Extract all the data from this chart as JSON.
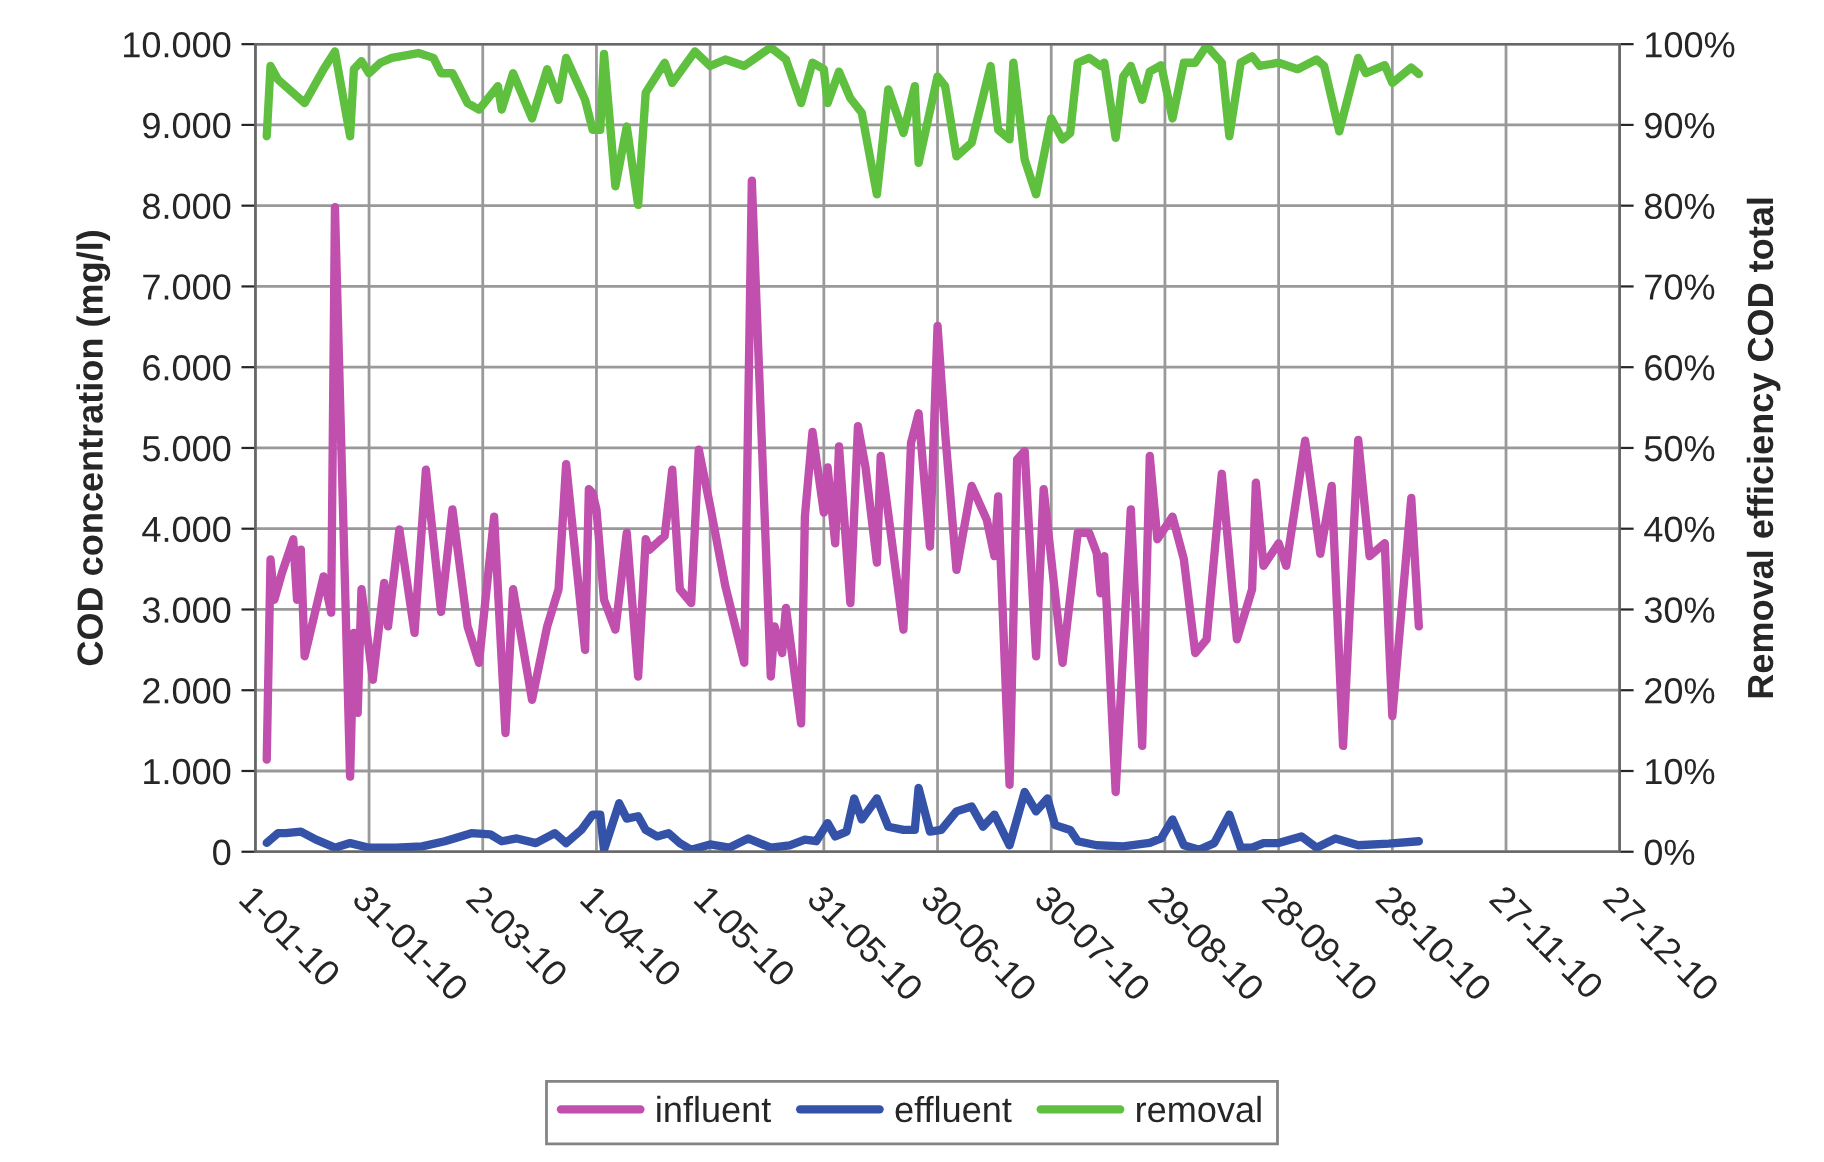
{
  "chart_data": {
    "type": "line",
    "ylabel": "COD concentration (mg/l)",
    "y2label": "Removal efficiency COD total",
    "xlim": [
      "2010-01-01",
      "2010-12-27"
    ],
    "xticks": [
      {
        "value": "2010-01-01",
        "label": "1-01-10"
      },
      {
        "value": "2010-01-31",
        "label": "31-01-10"
      },
      {
        "value": "2010-03-02",
        "label": "2-03-10"
      },
      {
        "value": "2010-04-01",
        "label": "1-04-10"
      },
      {
        "value": "2010-05-01",
        "label": "1-05-10"
      },
      {
        "value": "2010-05-31",
        "label": "31-05-10"
      },
      {
        "value": "2010-06-30",
        "label": "30-06-10"
      },
      {
        "value": "2010-07-30",
        "label": "30-07-10"
      },
      {
        "value": "2010-08-29",
        "label": "29-08-10"
      },
      {
        "value": "2010-09-28",
        "label": "28-09-10"
      },
      {
        "value": "2010-10-28",
        "label": "28-10-10"
      },
      {
        "value": "2010-11-27",
        "label": "27-11-10"
      },
      {
        "value": "2010-12-27",
        "label": "27-12-10"
      }
    ],
    "ylim": [
      0,
      10000
    ],
    "yticks": [
      0,
      {
        "value": 1000,
        "label": "1.000"
      },
      {
        "value": 2000,
        "label": "2.000"
      },
      {
        "value": 3000,
        "label": "3.000"
      },
      {
        "value": 4000,
        "label": "4.000"
      },
      {
        "value": 5000,
        "label": "5.000"
      },
      {
        "value": 6000,
        "label": "6.000"
      },
      {
        "value": 7000,
        "label": "7.000"
      },
      {
        "value": 8000,
        "label": "8.000"
      },
      {
        "value": 9000,
        "label": "9.000"
      },
      {
        "value": 10000,
        "label": "10.000"
      }
    ],
    "y2lim": [
      0,
      100
    ],
    "y2ticks": [
      {
        "value": 0,
        "label": "0%"
      },
      {
        "value": 10,
        "label": "10%"
      },
      {
        "value": 20,
        "label": "20%"
      },
      {
        "value": 30,
        "label": "30%"
      },
      {
        "value": 40,
        "label": "40%"
      },
      {
        "value": 50,
        "label": "50%"
      },
      {
        "value": 60,
        "label": "60%"
      },
      {
        "value": 70,
        "label": "70%"
      },
      {
        "value": 80,
        "label": "80%"
      },
      {
        "value": 90,
        "label": "90%"
      },
      {
        "value": 100,
        "label": "100%"
      }
    ],
    "grid": true,
    "legend": "bottom",
    "marker": "none",
    "line_style": "solid",
    "series": [
      {
        "name": "influent",
        "color": "#c04fae",
        "x": [
          "2010-01-04",
          "2010-01-05",
          "2010-01-06",
          "2010-01-08",
          "2010-01-11",
          "2010-01-12",
          "2010-01-13",
          "2010-01-14",
          "2010-01-19",
          "2010-01-21",
          "2010-01-22",
          "2010-01-26",
          "2010-01-27",
          "2010-01-28",
          "2010-01-29",
          "2010-02-01",
          "2010-02-04",
          "2010-02-05",
          "2010-02-08",
          "2010-02-12",
          "2010-02-15",
          "2010-02-19",
          "2010-02-22",
          "2010-02-26",
          "2010-03-01",
          "2010-03-05",
          "2010-03-08",
          "2010-03-10",
          "2010-03-15",
          "2010-03-19",
          "2010-03-22",
          "2010-03-24",
          "2010-03-29",
          "2010-03-30",
          "2010-03-31",
          "2010-04-01",
          "2010-04-03",
          "2010-04-06",
          "2010-04-09",
          "2010-04-12",
          "2010-04-14",
          "2010-04-15",
          "2010-04-19",
          "2010-04-21",
          "2010-04-23",
          "2010-04-26",
          "2010-04-28",
          "2010-05-01",
          "2010-05-05",
          "2010-05-10",
          "2010-05-12",
          "2010-05-17",
          "2010-05-18",
          "2010-05-20",
          "2010-05-21",
          "2010-05-25",
          "2010-05-26",
          "2010-05-28",
          "2010-05-31",
          "2010-06-01",
          "2010-06-03",
          "2010-06-04",
          "2010-06-07",
          "2010-06-09",
          "2010-06-11",
          "2010-06-14",
          "2010-06-15",
          "2010-06-21",
          "2010-06-23",
          "2010-06-25",
          "2010-06-28",
          "2010-06-30",
          "2010-07-02",
          "2010-07-05",
          "2010-07-09",
          "2010-07-13",
          "2010-07-15",
          "2010-07-16",
          "2010-07-19",
          "2010-07-21",
          "2010-07-23",
          "2010-07-26",
          "2010-07-28",
          "2010-08-02",
          "2010-08-06",
          "2010-08-09",
          "2010-08-11",
          "2010-08-12",
          "2010-08-13",
          "2010-08-16",
          "2010-08-20",
          "2010-08-23",
          "2010-08-25",
          "2010-08-27",
          "2010-08-31",
          "2010-09-03",
          "2010-09-06",
          "2010-09-09",
          "2010-09-13",
          "2010-09-17",
          "2010-09-21",
          "2010-09-22",
          "2010-09-24",
          "2010-09-28",
          "2010-09-30",
          "2010-10-05",
          "2010-10-09",
          "2010-10-12",
          "2010-10-15",
          "2010-10-19",
          "2010-10-22",
          "2010-10-26",
          "2010-10-28",
          "2010-11-02",
          "2010-11-04"
        ],
        "values": [
          1140,
          3620,
          3120,
          3450,
          3870,
          3120,
          3740,
          2420,
          3410,
          2960,
          7980,
          930,
          2710,
          1720,
          3250,
          2130,
          3330,
          2790,
          3990,
          2710,
          4730,
          2970,
          4240,
          2790,
          2340,
          4150,
          1470,
          3250,
          1880,
          2790,
          3250,
          4800,
          2500,
          4490,
          4440,
          4240,
          3120,
          2750,
          3950,
          2170,
          3870,
          3740,
          3910,
          4730,
          3250,
          3080,
          4980,
          4280,
          3290,
          2340,
          8310,
          2170,
          2790,
          2460,
          3020,
          1590,
          4150,
          5200,
          4200,
          4760,
          3820,
          5020,
          3080,
          5270,
          4760,
          3580,
          4900,
          2750,
          5060,
          5430,
          3780,
          6510,
          5190,
          3490,
          4530,
          4110,
          3660,
          4400,
          830,
          4860,
          4960,
          2420,
          4490,
          2340,
          3950,
          3950,
          3700,
          3200,
          3660,
          740,
          4240,
          1310,
          4900,
          3870,
          4150,
          3620,
          2460,
          2630,
          4680,
          2630,
          3250,
          4570,
          3540,
          3820,
          3540,
          5090,
          3690,
          4530,
          1310,
          5100,
          3660,
          3820,
          1680,
          4380,
          2790
        ]
      },
      {
        "name": "effluent",
        "color": "#3452a8",
        "x": [
          "2010-01-04",
          "2010-01-07",
          "2010-01-09",
          "2010-01-13",
          "2010-01-17",
          "2010-01-22",
          "2010-01-26",
          "2010-01-31",
          "2010-02-07",
          "2010-02-14",
          "2010-02-20",
          "2010-02-27",
          "2010-03-04",
          "2010-03-07",
          "2010-03-11",
          "2010-03-16",
          "2010-03-21",
          "2010-03-24",
          "2010-03-28",
          "2010-03-31",
          "2010-04-02",
          "2010-04-03",
          "2010-04-07",
          "2010-04-09",
          "2010-04-12",
          "2010-04-14",
          "2010-04-17",
          "2010-04-20",
          "2010-04-23",
          "2010-04-26",
          "2010-05-01",
          "2010-05-06",
          "2010-05-11",
          "2010-05-17",
          "2010-05-22",
          "2010-05-26",
          "2010-05-29",
          "2010-06-01",
          "2010-06-03",
          "2010-06-06",
          "2010-06-08",
          "2010-06-10",
          "2010-06-14",
          "2010-06-17",
          "2010-06-21",
          "2010-06-24",
          "2010-06-25",
          "2010-06-28",
          "2010-07-01",
          "2010-07-05",
          "2010-07-09",
          "2010-07-12",
          "2010-07-15",
          "2010-07-19",
          "2010-07-23",
          "2010-07-26",
          "2010-07-29",
          "2010-07-31",
          "2010-08-04",
          "2010-08-06",
          "2010-08-11",
          "2010-08-18",
          "2010-08-25",
          "2010-08-28",
          "2010-08-31",
          "2010-09-03",
          "2010-09-07",
          "2010-09-11",
          "2010-09-15",
          "2010-09-18",
          "2010-09-21",
          "2010-09-24",
          "2010-09-28",
          "2010-10-04",
          "2010-10-08",
          "2010-10-13",
          "2010-10-19",
          "2010-10-27",
          "2010-11-04"
        ],
        "values": [
          110,
          230,
          230,
          250,
          150,
          50,
          107,
          50,
          50,
          66,
          130,
          230,
          215,
          130,
          165,
          107,
          230,
          107,
          270,
          460,
          460,
          25,
          600,
          410,
          440,
          270,
          190,
          230,
          107,
          25,
          90,
          50,
          165,
          50,
          80,
          150,
          130,
          355,
          190,
          250,
          660,
          400,
          660,
          310,
          270,
          270,
          790,
          250,
          270,
          500,
          560,
          310,
          460,
          80,
          740,
          500,
          660,
          330,
          270,
          130,
          80,
          66,
          110,
          165,
          400,
          80,
          25,
          107,
          460,
          50,
          50,
          107,
          107,
          190,
          50,
          165,
          80,
          100,
          130
        ]
      },
      {
        "name": "removal",
        "color": "#5fbf3f",
        "axis": "y2",
        "x": [
          "2010-01-04",
          "2010-01-05",
          "2010-01-07",
          "2010-01-14",
          "2010-01-19",
          "2010-01-22",
          "2010-01-26",
          "2010-01-27",
          "2010-01-29",
          "2010-01-31",
          "2010-02-03",
          "2010-02-06",
          "2010-02-13",
          "2010-02-17",
          "2010-02-19",
          "2010-02-22",
          "2010-02-26",
          "2010-03-01",
          "2010-03-06",
          "2010-03-07",
          "2010-03-10",
          "2010-03-15",
          "2010-03-19",
          "2010-03-22",
          "2010-03-24",
          "2010-03-29",
          "2010-03-31",
          "2010-04-02",
          "2010-04-03",
          "2010-04-06",
          "2010-04-09",
          "2010-04-12",
          "2010-04-14",
          "2010-04-19",
          "2010-04-21",
          "2010-04-27",
          "2010-05-01",
          "2010-05-05",
          "2010-05-10",
          "2010-05-17",
          "2010-05-21",
          "2010-05-25",
          "2010-05-28",
          "2010-05-31",
          "2010-06-01",
          "2010-06-04",
          "2010-06-07",
          "2010-06-10",
          "2010-06-14",
          "2010-06-17",
          "2010-06-21",
          "2010-06-24",
          "2010-06-25",
          "2010-06-30",
          "2010-07-02",
          "2010-07-05",
          "2010-07-09",
          "2010-07-14",
          "2010-07-16",
          "2010-07-19",
          "2010-07-20",
          "2010-07-23",
          "2010-07-26",
          "2010-07-30",
          "2010-08-02",
          "2010-08-04",
          "2010-08-06",
          "2010-08-09",
          "2010-08-12",
          "2010-08-13",
          "2010-08-16",
          "2010-08-18",
          "2010-08-20",
          "2010-08-23",
          "2010-08-25",
          "2010-08-28",
          "2010-08-31",
          "2010-09-03",
          "2010-09-06",
          "2010-09-09",
          "2010-09-13",
          "2010-09-15",
          "2010-09-18",
          "2010-09-21",
          "2010-09-23",
          "2010-09-28",
          "2010-10-03",
          "2010-10-08",
          "2010-10-10",
          "2010-10-14",
          "2010-10-19",
          "2010-10-21",
          "2010-10-26",
          "2010-10-28",
          "2010-11-02",
          "2010-11-04"
        ],
        "values": [
          88.6,
          97.3,
          95.6,
          92.7,
          96.9,
          99.1,
          88.6,
          96.9,
          97.9,
          96.4,
          97.7,
          98.3,
          98.9,
          98.3,
          96.4,
          96.4,
          92.7,
          91.9,
          94.8,
          91.9,
          96.4,
          90.8,
          96.9,
          93.1,
          98.3,
          93.1,
          89.4,
          89.4,
          98.8,
          82.4,
          89.8,
          80.1,
          94.0,
          97.7,
          95.2,
          99.1,
          97.3,
          98.1,
          97.3,
          99.6,
          98.1,
          92.7,
          97.7,
          96.9,
          92.7,
          96.6,
          93.3,
          91.5,
          81.4,
          94.4,
          89.0,
          94.8,
          85.3,
          96.0,
          94.8,
          86.1,
          87.8,
          97.3,
          89.4,
          88.2,
          97.7,
          85.7,
          81.4,
          90.8,
          88.2,
          89.0,
          97.7,
          98.3,
          97.3,
          97.7,
          88.4,
          96.0,
          97.3,
          93.1,
          96.6,
          97.4,
          90.8,
          97.7,
          97.7,
          99.8,
          97.7,
          88.6,
          97.7,
          98.5,
          97.3,
          97.7,
          96.9,
          98.1,
          97.3,
          89.2,
          98.3,
          96.4,
          97.4,
          95.2,
          97.1,
          96.3
        ]
      }
    ]
  }
}
